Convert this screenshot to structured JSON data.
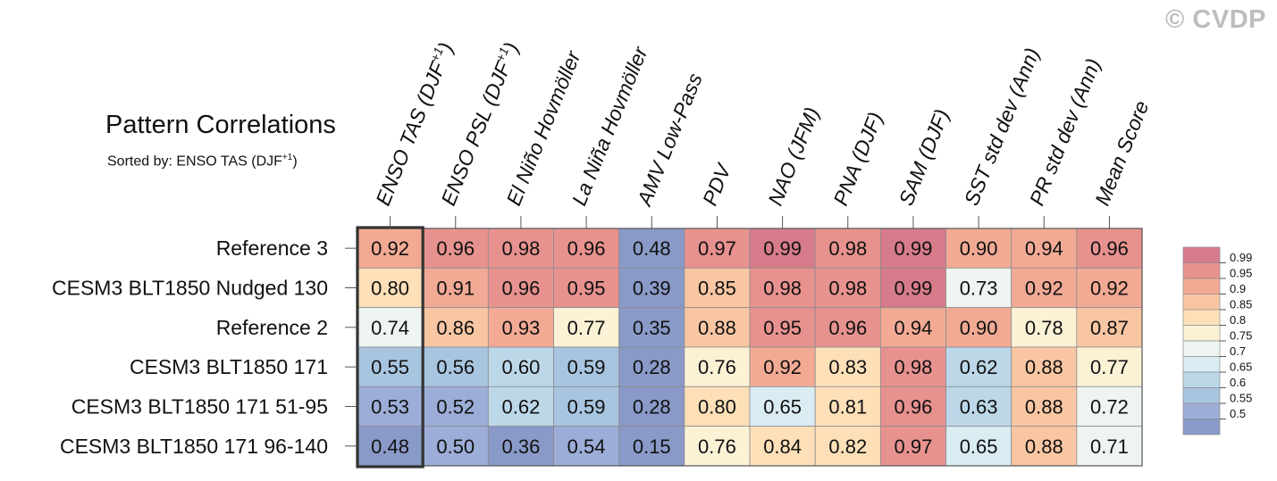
{
  "watermark": "© CVDP",
  "chart_data": {
    "type": "heatmap",
    "title": "Pattern Correlations",
    "subtitle_prefix": "Sorted by: ENSO TAS (DJF",
    "subtitle_sup": "+1",
    "subtitle_suffix": ")",
    "columns": [
      {
        "label": "ENSO TAS (DJF",
        "sup": "+1",
        "tail": ")"
      },
      {
        "label": "ENSO PSL (DJF",
        "sup": "+1",
        "tail": ")"
      },
      {
        "label": "El Niño Hovmöller",
        "sup": "",
        "tail": ""
      },
      {
        "label": "La Niña Hovmöller",
        "sup": "",
        "tail": ""
      },
      {
        "label": "AMV Low-Pass",
        "sup": "",
        "tail": ""
      },
      {
        "label": "PDV",
        "sup": "",
        "tail": ""
      },
      {
        "label": "NAO (JFM)",
        "sup": "",
        "tail": ""
      },
      {
        "label": "PNA (DJF)",
        "sup": "",
        "tail": ""
      },
      {
        "label": "SAM (DJF)",
        "sup": "",
        "tail": ""
      },
      {
        "label": "SST std dev (Ann)",
        "sup": "",
        "tail": ""
      },
      {
        "label": "PR std dev (Ann)",
        "sup": "",
        "tail": ""
      },
      {
        "label": "Mean Score",
        "sup": "",
        "tail": ""
      }
    ],
    "rows": [
      "Reference 3",
      "CESM3 BLT1850 Nudged 130",
      "Reference 2",
      "CESM3 BLT1850 171",
      "CESM3 BLT1850 171 51-95",
      "CESM3 BLT1850 171 96-140"
    ],
    "values": [
      [
        "0.92",
        "0.96",
        "0.98",
        "0.96",
        "0.48",
        "0.97",
        "0.99",
        "0.98",
        "0.99",
        "0.90",
        "0.94",
        "0.96"
      ],
      [
        "0.80",
        "0.91",
        "0.96",
        "0.95",
        "0.39",
        "0.85",
        "0.98",
        "0.98",
        "0.99",
        "0.73",
        "0.92",
        "0.92"
      ],
      [
        "0.74",
        "0.86",
        "0.93",
        "0.77",
        "0.35",
        "0.88",
        "0.95",
        "0.96",
        "0.94",
        "0.90",
        "0.78",
        "0.87"
      ],
      [
        "0.55",
        "0.56",
        "0.60",
        "0.59",
        "0.28",
        "0.76",
        "0.92",
        "0.83",
        "0.98",
        "0.62",
        "0.88",
        "0.77"
      ],
      [
        "0.53",
        "0.52",
        "0.62",
        "0.59",
        "0.28",
        "0.80",
        "0.65",
        "0.81",
        "0.96",
        "0.63",
        "0.88",
        "0.72"
      ],
      [
        "0.48",
        "0.50",
        "0.36",
        "0.54",
        "0.15",
        "0.76",
        "0.84",
        "0.82",
        "0.97",
        "0.65",
        "0.88",
        "0.71"
      ]
    ],
    "sorted_column": 0,
    "legend": {
      "placement": "right",
      "levels": [
        "0.99",
        "0.95",
        "0.9",
        "0.85",
        "0.8",
        "0.75",
        "0.7",
        "0.65",
        "0.6",
        "0.55",
        "0.5"
      ],
      "colors": [
        "#d67b8a",
        "#e7928f",
        "#f2aa95",
        "#f9c6a3",
        "#fde0b8",
        "#fbf2d6",
        "#eef4f0",
        "#d9ecf2",
        "#bcd7e8",
        "#a8c5e0",
        "#9cadd7",
        "#8a9ac8"
      ]
    }
  }
}
